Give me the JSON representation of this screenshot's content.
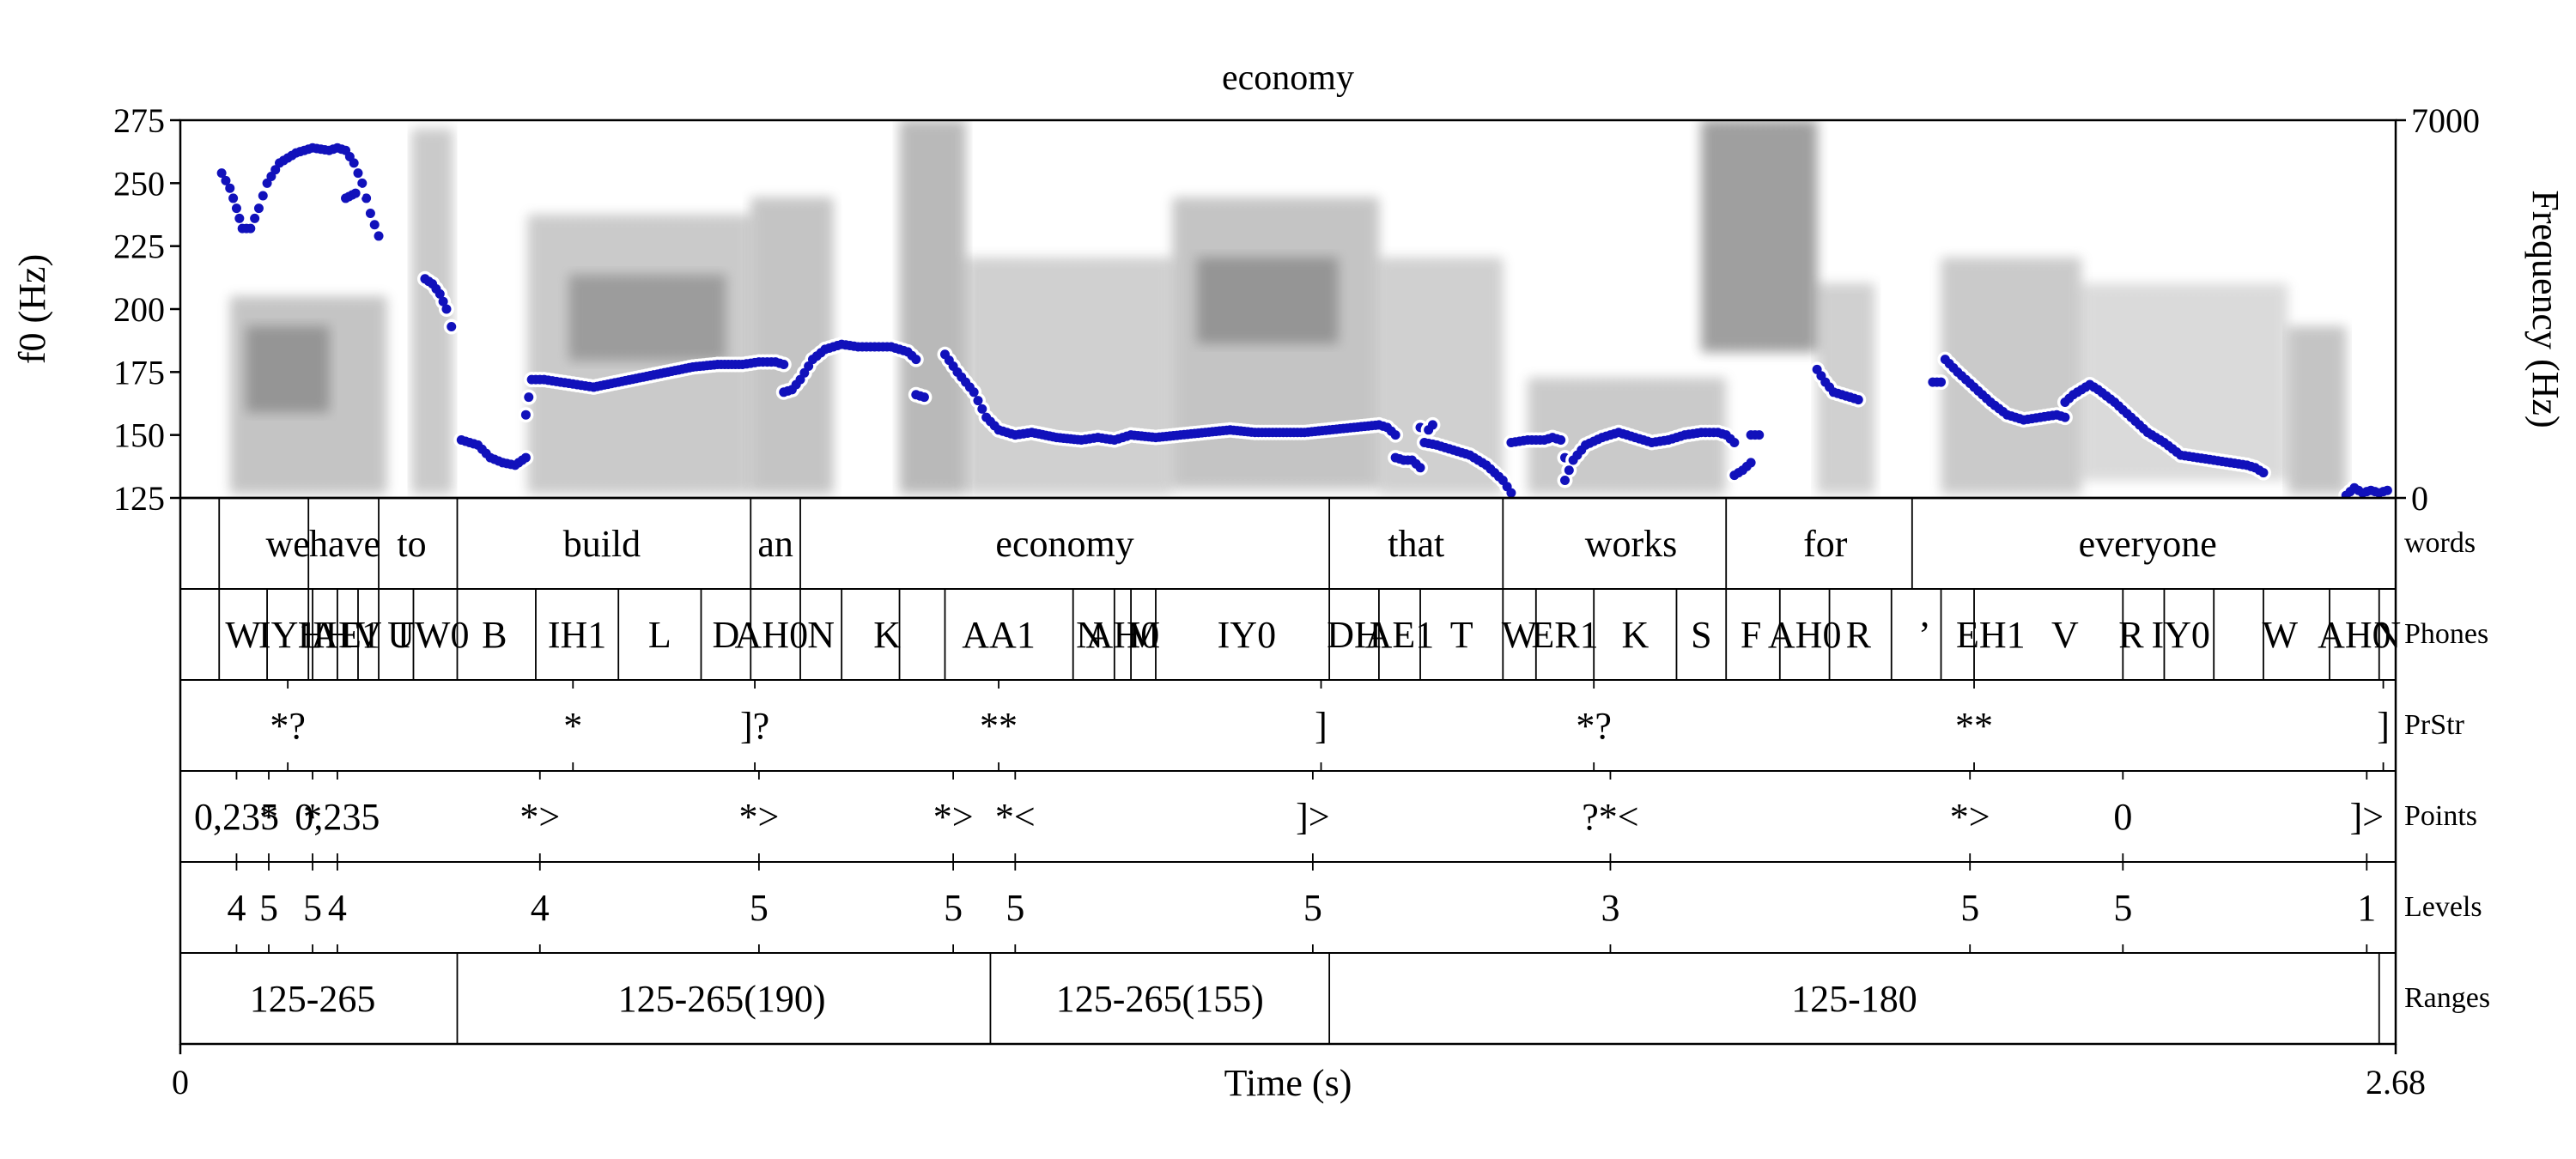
{
  "chart_data": {
    "type": "line",
    "title": "economy",
    "xlabel": "Time (s)",
    "ylabel_left": "f0 (Hz)",
    "ylabel_right": "Frequency (Hz)",
    "x_range": [
      0,
      2.68
    ],
    "x_tick_labels": [
      "0",
      "2.68"
    ],
    "f0_range": [
      125,
      275
    ],
    "f0_ticks": [
      125,
      150,
      175,
      200,
      225,
      250,
      275
    ],
    "freq_range": [
      0,
      7000
    ],
    "freq_tick_labels": [
      "0",
      "7000"
    ],
    "series": [
      {
        "color": "#1111bb",
        "segments": [
          [
            [
              0.05,
              254
            ],
            [
              0.06,
              248
            ],
            [
              0.068,
              240
            ],
            [
              0.075,
              232
            ],
            [
              0.085,
              232
            ],
            [
              0.095,
              240
            ],
            [
              0.105,
              250
            ],
            [
              0.12,
              258
            ],
            [
              0.14,
              262
            ],
            [
              0.16,
              264
            ],
            [
              0.18,
              263
            ],
            [
              0.19,
              264
            ],
            [
              0.2,
              263
            ],
            [
              0.21,
              258
            ],
            [
              0.22,
              250
            ],
            [
              0.23,
              238
            ],
            [
              0.24,
              229
            ]
          ],
          [
            [
              0.2,
              244
            ],
            [
              0.212,
              246
            ]
          ],
          [
            [
              0.296,
              212
            ],
            [
              0.305,
              210
            ],
            [
              0.314,
              206
            ],
            [
              0.322,
              200
            ],
            [
              0.328,
              193
            ]
          ],
          [
            [
              0.34,
              148
            ],
            [
              0.36,
              146
            ],
            [
              0.375,
              141
            ],
            [
              0.39,
              139
            ],
            [
              0.405,
              138
            ],
            [
              0.418,
              141
            ]
          ],
          [
            [
              0.418,
              158
            ],
            [
              0.425,
              172
            ],
            [
              0.44,
              172
            ],
            [
              0.46,
              171
            ],
            [
              0.48,
              170
            ],
            [
              0.5,
              169
            ],
            [
              0.53,
              171
            ],
            [
              0.56,
              173
            ],
            [
              0.59,
              175
            ],
            [
              0.62,
              177
            ],
            [
              0.65,
              178
            ],
            [
              0.68,
              178
            ],
            [
              0.7,
              179
            ],
            [
              0.72,
              179
            ],
            [
              0.73,
              178
            ]
          ],
          [
            [
              0.73,
              167
            ],
            [
              0.74,
              168
            ],
            [
              0.75,
              172
            ],
            [
              0.765,
              180
            ],
            [
              0.78,
              184
            ],
            [
              0.8,
              186
            ],
            [
              0.82,
              185
            ],
            [
              0.84,
              185
            ],
            [
              0.86,
              185
            ],
            [
              0.88,
              183
            ],
            [
              0.89,
              180
            ]
          ],
          [
            [
              0.89,
              166
            ],
            [
              0.9,
              165
            ]
          ],
          [
            [
              0.925,
              182
            ],
            [
              0.94,
              175
            ],
            [
              0.96,
              167
            ],
            [
              0.975,
              157
            ],
            [
              0.99,
              152
            ],
            [
              1.01,
              150
            ],
            [
              1.03,
              151
            ],
            [
              1.06,
              149
            ],
            [
              1.09,
              148
            ],
            [
              1.11,
              149
            ],
            [
              1.13,
              148
            ],
            [
              1.15,
              150
            ],
            [
              1.18,
              149
            ],
            [
              1.21,
              150
            ],
            [
              1.24,
              151
            ],
            [
              1.27,
              152
            ],
            [
              1.3,
              151
            ],
            [
              1.33,
              151
            ],
            [
              1.36,
              151
            ],
            [
              1.39,
              152
            ],
            [
              1.42,
              153
            ],
            [
              1.45,
              154
            ],
            [
              1.46,
              153
            ],
            [
              1.47,
              150
            ]
          ],
          [
            [
              1.47,
              141
            ],
            [
              1.48,
              140
            ],
            [
              1.49,
              140
            ],
            [
              1.5,
              137
            ]
          ],
          [
            [
              1.5,
              153
            ],
            [
              1.505,
              147
            ],
            [
              1.52,
              146
            ],
            [
              1.54,
              144
            ],
            [
              1.56,
              142
            ],
            [
              1.58,
              138
            ],
            [
              1.6,
              132
            ],
            [
              1.61,
              127
            ]
          ],
          [
            [
              1.51,
              152
            ],
            [
              1.515,
              154
            ]
          ],
          [
            [
              1.61,
              147
            ],
            [
              1.63,
              148
            ],
            [
              1.65,
              148
            ],
            [
              1.66,
              149
            ],
            [
              1.67,
              148
            ],
            [
              1.675,
              141
            ]
          ],
          [
            [
              1.675,
              132
            ],
            [
              1.685,
              140
            ],
            [
              1.7,
              146
            ],
            [
              1.72,
              149
            ],
            [
              1.74,
              151
            ],
            [
              1.76,
              149
            ],
            [
              1.78,
              147
            ],
            [
              1.8,
              148
            ],
            [
              1.82,
              150
            ],
            [
              1.84,
              151
            ],
            [
              1.86,
              151
            ],
            [
              1.87,
              150
            ],
            [
              1.88,
              147
            ]
          ],
          [
            [
              1.88,
              134
            ],
            [
              1.89,
              136
            ],
            [
              1.9,
              139
            ]
          ],
          [
            [
              1.9,
              150
            ],
            [
              1.91,
              150
            ]
          ],
          [
            [
              1.98,
              176
            ],
            [
              1.99,
              171
            ],
            [
              2,
              167
            ],
            [
              2.01,
              166
            ],
            [
              2.02,
              165
            ],
            [
              2.03,
              164
            ]
          ],
          [
            [
              2.12,
              171
            ],
            [
              2.13,
              171
            ]
          ],
          [
            [
              2.135,
              180
            ],
            [
              2.15,
              175
            ],
            [
              2.17,
              169
            ],
            [
              2.19,
              163
            ],
            [
              2.21,
              158
            ],
            [
              2.23,
              156
            ],
            [
              2.25,
              157
            ],
            [
              2.27,
              158
            ],
            [
              2.28,
              157
            ]
          ],
          [
            [
              2.28,
              163
            ],
            [
              2.29,
              166
            ],
            [
              2.3,
              168
            ],
            [
              2.31,
              170
            ],
            [
              2.32,
              168
            ],
            [
              2.34,
              163
            ],
            [
              2.36,
              157
            ],
            [
              2.38,
              151
            ],
            [
              2.4,
              147
            ],
            [
              2.42,
              142
            ],
            [
              2.44,
              141
            ],
            [
              2.46,
              140
            ],
            [
              2.48,
              139
            ],
            [
              2.5,
              138
            ],
            [
              2.51,
              137
            ],
            [
              2.52,
              135
            ]
          ],
          [
            [
              2.62,
              126
            ],
            [
              2.63,
              129
            ],
            [
              2.64,
              127
            ],
            [
              2.65,
              128
            ],
            [
              2.66,
              127
            ],
            [
              2.67,
              128
            ]
          ]
        ]
      }
    ],
    "tiers": [
      {
        "name": "words",
        "type": "interval",
        "boundaries": [
          0.047,
          0.155,
          0.24,
          0.335,
          0.69,
          0.75,
          1.39,
          1.6,
          1.87,
          2.095,
          2.68
        ],
        "labels": [
          {
            "t": 0.13,
            "text": "we"
          },
          {
            "t": 0.199,
            "text": "have"
          },
          {
            "t": 0.28,
            "text": "to"
          },
          {
            "t": 0.51,
            "text": "build"
          },
          {
            "t": 0.72,
            "text": "an"
          },
          {
            "t": 1.07,
            "text": "economy"
          },
          {
            "t": 1.495,
            "text": "that"
          },
          {
            "t": 1.755,
            "text": "works"
          },
          {
            "t": 1.99,
            "text": "for"
          },
          {
            "t": 2.38,
            "text": "everyone"
          }
        ]
      },
      {
        "name": "Phones",
        "type": "interval",
        "boundaries": [
          0.047,
          0.105,
          0.155,
          0.16,
          0.19,
          0.215,
          0.24,
          0.282,
          0.335,
          0.43,
          0.53,
          0.63,
          0.69,
          0.75,
          0.8,
          0.87,
          0.925,
          1.08,
          1.13,
          1.15,
          1.18,
          1.39,
          1.45,
          1.5,
          1.6,
          1.64,
          1.71,
          1.81,
          1.87,
          1.935,
          1.995,
          2.07,
          2.13,
          2.17,
          2.35,
          2.4,
          2.46,
          2.52,
          2.6,
          2.66,
          2.68
        ],
        "labels": [
          {
            "t": 0.076,
            "text": "W"
          },
          {
            "t": 0.13,
            "text": "IY1"
          },
          {
            "t": 0.175,
            "text": "HH"
          },
          {
            "t": 0.2,
            "text": "AE1"
          },
          {
            "t": 0.227,
            "text": "V"
          },
          {
            "t": 0.27,
            "text": "T"
          },
          {
            "t": 0.3,
            "text": "UW0"
          },
          {
            "t": 0.38,
            "text": "B"
          },
          {
            "t": 0.48,
            "text": "IH1"
          },
          {
            "t": 0.58,
            "text": "L"
          },
          {
            "t": 0.66,
            "text": "D"
          },
          {
            "t": 0.715,
            "text": "AH0"
          },
          {
            "t": 0.775,
            "text": "N"
          },
          {
            "t": 0.855,
            "text": "K"
          },
          {
            "t": 0.99,
            "text": "AA1"
          },
          {
            "t": 1.1,
            "text": "N"
          },
          {
            "t": 1.14,
            "text": "AH0"
          },
          {
            "t": 1.165,
            "text": "M"
          },
          {
            "t": 1.29,
            "text": "IY0"
          },
          {
            "t": 1.42,
            "text": "DH"
          },
          {
            "t": 1.475,
            "text": "AE1"
          },
          {
            "t": 1.55,
            "text": "T"
          },
          {
            "t": 1.62,
            "text": "W"
          },
          {
            "t": 1.675,
            "text": "ER1"
          },
          {
            "t": 1.76,
            "text": "K"
          },
          {
            "t": 1.84,
            "text": "S"
          },
          {
            "t": 1.9,
            "text": "F"
          },
          {
            "t": 1.965,
            "text": "AH0"
          },
          {
            "t": 2.03,
            "text": "R"
          },
          {
            "t": 2.11,
            "text": "’"
          },
          {
            "t": 2.19,
            "text": "EH1"
          },
          {
            "t": 2.28,
            "text": "V"
          },
          {
            "t": 2.36,
            "text": "R"
          },
          {
            "t": 2.42,
            "text": "IY0"
          },
          {
            "t": 2.54,
            "text": "W"
          },
          {
            "t": 2.63,
            "text": "AH0"
          },
          {
            "t": 2.67,
            "text": "N"
          }
        ]
      },
      {
        "name": "PrStr",
        "type": "point",
        "points": [
          {
            "t": 0.13,
            "text": "*?"
          },
          {
            "t": 0.475,
            "text": "*"
          },
          {
            "t": 0.695,
            "text": "]?"
          },
          {
            "t": 0.99,
            "text": "**"
          },
          {
            "t": 1.38,
            "text": "]"
          },
          {
            "t": 1.71,
            "text": "*?"
          },
          {
            "t": 2.17,
            "text": "**"
          },
          {
            "t": 2.665,
            "text": "]"
          }
        ]
      },
      {
        "name": "Points",
        "type": "point",
        "points": [
          {
            "t": 0.068,
            "text": "0,235"
          },
          {
            "t": 0.107,
            "text": "*"
          },
          {
            "t": 0.16,
            "text": "*"
          },
          {
            "t": 0.19,
            "text": "0,235"
          },
          {
            "t": 0.435,
            "text": "*>"
          },
          {
            "t": 0.7,
            "text": "*>"
          },
          {
            "t": 0.935,
            "text": "*>"
          },
          {
            "t": 1.01,
            "text": "*<"
          },
          {
            "t": 1.37,
            "text": "]>"
          },
          {
            "t": 1.73,
            "text": "?*<"
          },
          {
            "t": 2.165,
            "text": "*>"
          },
          {
            "t": 2.35,
            "text": "0"
          },
          {
            "t": 2.645,
            "text": "]>"
          }
        ]
      },
      {
        "name": "Levels",
        "type": "point",
        "points": [
          {
            "t": 0.068,
            "text": "4"
          },
          {
            "t": 0.107,
            "text": "5"
          },
          {
            "t": 0.16,
            "text": "5"
          },
          {
            "t": 0.19,
            "text": "4"
          },
          {
            "t": 0.435,
            "text": "4"
          },
          {
            "t": 0.7,
            "text": "5"
          },
          {
            "t": 0.935,
            "text": "5"
          },
          {
            "t": 1.01,
            "text": "5"
          },
          {
            "t": 1.37,
            "text": "5"
          },
          {
            "t": 1.73,
            "text": "3"
          },
          {
            "t": 2.165,
            "text": "5"
          },
          {
            "t": 2.35,
            "text": "5"
          },
          {
            "t": 2.645,
            "text": "1"
          }
        ]
      },
      {
        "name": "Ranges",
        "type": "interval",
        "boundaries": [
          0,
          0.335,
          0.98,
          1.39,
          2.66,
          2.68
        ],
        "labels": [
          {
            "t": 0.16,
            "text": "125-265"
          },
          {
            "t": 0.655,
            "text": "125-265(190)"
          },
          {
            "t": 1.185,
            "text": "125-265(155)"
          },
          {
            "t": 2.025,
            "text": "125-180"
          }
        ]
      }
    ]
  }
}
